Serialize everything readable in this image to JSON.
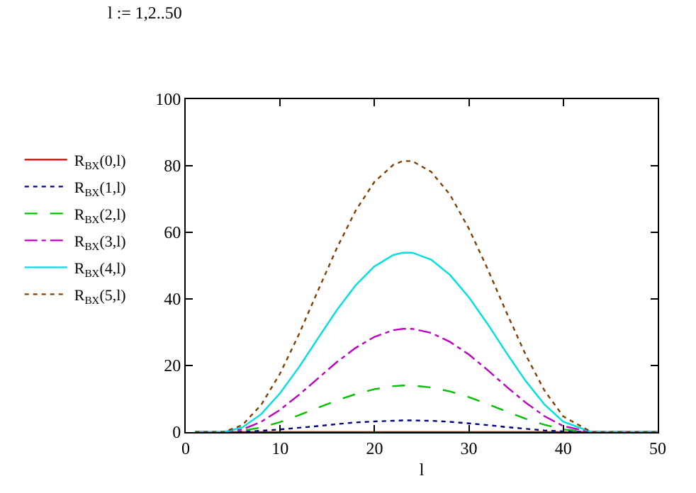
{
  "chart_data": {
    "type": "line",
    "xlabel": "l",
    "annotations": [
      "l := 1,2..50"
    ],
    "x": [
      1,
      4,
      6,
      8,
      10,
      12,
      14,
      16,
      18,
      20,
      22,
      23,
      24,
      26,
      28,
      30,
      32,
      34,
      36,
      38,
      40,
      43,
      50
    ],
    "xlim": [
      0,
      50
    ],
    "xticks": [
      0,
      10,
      20,
      30,
      40,
      50
    ],
    "ylim": [
      0,
      100
    ],
    "yticks": [
      0,
      20,
      40,
      60,
      80,
      100
    ],
    "legend": "left",
    "marker": "none",
    "series": [
      {
        "name": "R$_{ВХ}$(0,l)",
        "color": "#cc0000",
        "line_style": "solid",
        "values": [
          0,
          0,
          0,
          0,
          0,
          0,
          0,
          0,
          0,
          0,
          0,
          0,
          0,
          0,
          0,
          0,
          0,
          0,
          0,
          0,
          0,
          0,
          0
        ]
      },
      {
        "name": "R$_{ВХ}$(1,l)",
        "color": "#000080",
        "line_style": "dotted",
        "values": [
          0,
          0,
          0.1,
          0.4,
          0.8,
          1.3,
          1.8,
          2.4,
          2.9,
          3.2,
          3.4,
          3.5,
          3.5,
          3.4,
          3.1,
          2.6,
          2.1,
          1.5,
          1.0,
          0.5,
          0.2,
          0,
          0
        ]
      },
      {
        "name": "R$_{ВХ}$(2,l)",
        "color": "#00c000",
        "line_style": "dashed",
        "values": [
          0,
          0,
          0.4,
          1.4,
          3.0,
          5.1,
          7.3,
          9.5,
          11.4,
          12.9,
          13.8,
          14.0,
          14.0,
          13.4,
          12.2,
          10.5,
          8.4,
          6.2,
          4.0,
          2.2,
          0.8,
          0,
          0
        ]
      },
      {
        "name": "R$_{ВХ}$(3,l)",
        "color": "#c000c0",
        "line_style": "dashdot",
        "values": [
          0,
          0,
          0.8,
          3.1,
          6.7,
          11.2,
          16.1,
          21.0,
          25.3,
          28.6,
          30.6,
          31.0,
          31.0,
          29.8,
          27.1,
          23.3,
          18.6,
          13.6,
          8.9,
          4.8,
          1.8,
          0,
          0
        ]
      },
      {
        "name": "R$_{ВХ}$(4,l)",
        "color": "#00e0e0",
        "line_style": "solid",
        "values": [
          0,
          0,
          1.4,
          5.4,
          11.7,
          19.5,
          28.1,
          36.6,
          44.1,
          49.8,
          53.2,
          53.9,
          53.9,
          51.8,
          47.2,
          40.5,
          32.4,
          23.7,
          15.4,
          8.3,
          3.1,
          0,
          0
        ]
      },
      {
        "name": "R$_{ВХ}$(5,l)",
        "color": "#804000",
        "line_style": "dotted",
        "values": [
          0,
          0,
          2.1,
          8.2,
          17.6,
          29.4,
          42.4,
          55.2,
          66.5,
          75.2,
          80.3,
          81.4,
          81.4,
          78.2,
          71.3,
          61.1,
          48.9,
          35.8,
          23.3,
          12.5,
          4.7,
          0,
          0
        ]
      }
    ]
  }
}
